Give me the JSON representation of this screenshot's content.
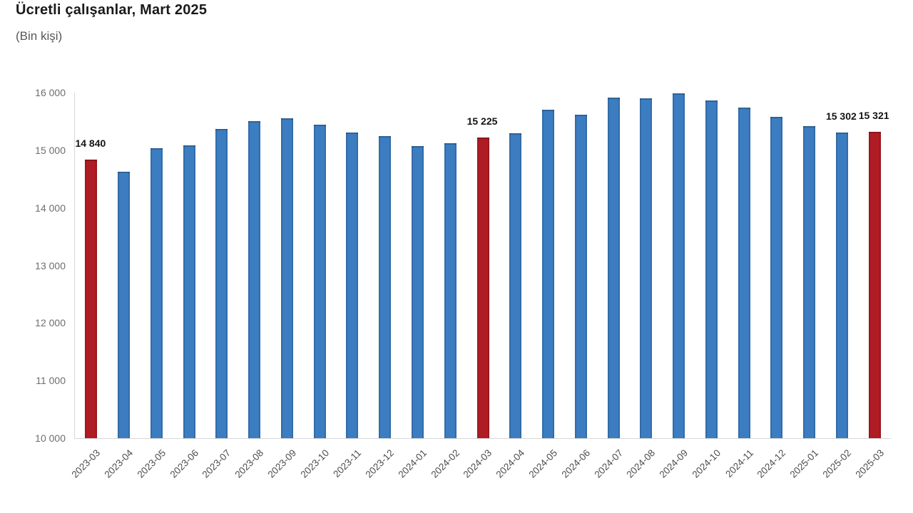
{
  "page": {
    "title": "Ücretli çalışanlar, Mart 2025",
    "subtitle": "(Bin kişi)"
  },
  "colors": {
    "bar_blue": "#3b7dc0",
    "bar_red": "#b01c23",
    "axis_line": "#d8d8d8",
    "ytick_text": "#6e6e6e",
    "xtick_text": "#4d4d4d",
    "data_label_text": "#141414"
  },
  "chart_data": {
    "type": "bar",
    "title": "Ücretli çalışanlar, Mart 2025",
    "subtitle": "(Bin kişi)",
    "unit": "Bin kişi",
    "categories": [
      "2023-03",
      "2023-04",
      "2023-05",
      "2023-06",
      "2023-07",
      "2023-08",
      "2023-09",
      "2023-10",
      "2023-11",
      "2023-12",
      "2024-01",
      "2024-02",
      "2024-03",
      "2024-04",
      "2024-05",
      "2024-06",
      "2024-07",
      "2024-08",
      "2024-09",
      "2024-10",
      "2024-11",
      "2024-12",
      "2025-01",
      "2025-02",
      "2025-03"
    ],
    "values": [
      14840,
      14630,
      15040,
      15080,
      15370,
      15500,
      15550,
      15440,
      15310,
      15240,
      15070,
      15120,
      15225,
      15290,
      15700,
      15620,
      15910,
      15900,
      15990,
      15860,
      15740,
      15580,
      15420,
      15302,
      15321
    ],
    "highlighted_indices": [
      0,
      12,
      24
    ],
    "data_labels": [
      {
        "index": 0,
        "text": "14 840"
      },
      {
        "index": 12,
        "text": "15 225"
      },
      {
        "index": 23,
        "text": "15 302"
      },
      {
        "index": 24,
        "text": "15 321"
      }
    ],
    "ylim": [
      10000,
      16000
    ],
    "yticks": [
      {
        "value": 10000,
        "label": "10 000"
      },
      {
        "value": 11000,
        "label": "11 000"
      },
      {
        "value": 12000,
        "label": "12 000"
      },
      {
        "value": 13000,
        "label": "13 000"
      },
      {
        "value": 14000,
        "label": "14 000"
      },
      {
        "value": 15000,
        "label": "15 000"
      },
      {
        "value": 16000,
        "label": "16 000"
      }
    ],
    "grid": false,
    "legend": "none"
  }
}
